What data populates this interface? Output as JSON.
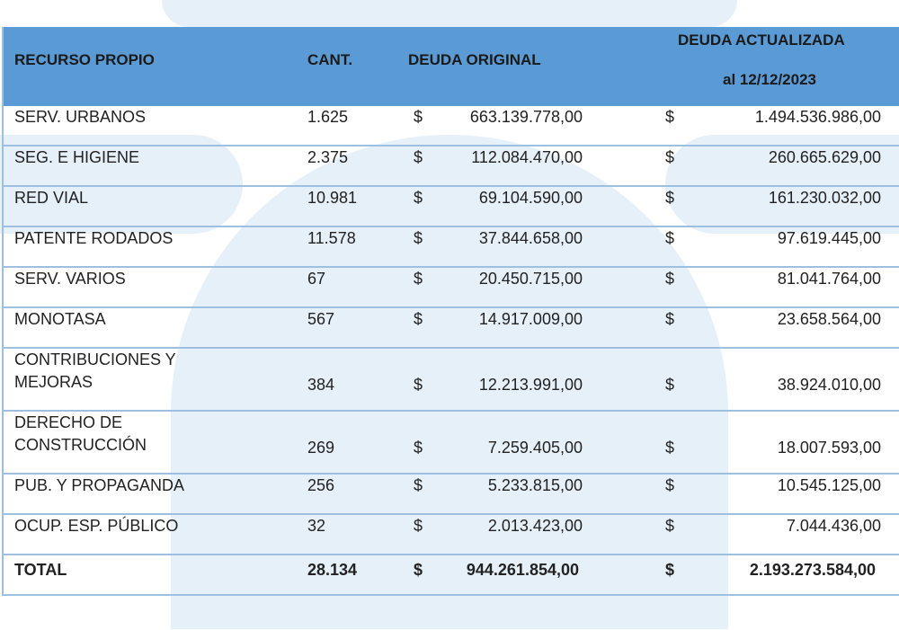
{
  "header": {
    "recurso": "RECURSO PROPIO",
    "cant": "CANT.",
    "deuda_original": "DEUDA ORIGINAL",
    "deuda_actualizada": "DEUDA ACTUALIZADA",
    "fecha": "al 12/12/2023"
  },
  "currency": "$",
  "rows": [
    {
      "name": [
        "SERV. URBANOS"
      ],
      "cant": "1.625",
      "original": "663.139.778,00",
      "actualizada": "1.494.536.986,00"
    },
    {
      "name": [
        "SEG. E HIGIENE"
      ],
      "cant": "2.375",
      "original": "112.084.470,00",
      "actualizada": "260.665.629,00"
    },
    {
      "name": [
        "RED VIAL"
      ],
      "cant": "10.981",
      "original": "69.104.590,00",
      "actualizada": "161.230.032,00"
    },
    {
      "name": [
        "PATENTE RODADOS"
      ],
      "cant": "11.578",
      "original": "37.844.658,00",
      "actualizada": "97.619.445,00"
    },
    {
      "name": [
        "SERV. VARIOS"
      ],
      "cant": "67",
      "original": "20.450.715,00",
      "actualizada": "81.041.764,00"
    },
    {
      "name": [
        "MONOTASA"
      ],
      "cant": "567",
      "original": "14.917.009,00",
      "actualizada": "23.658.564,00"
    },
    {
      "name": [
        "CONTRIBUCIONES Y",
        "MEJORAS"
      ],
      "cant": "384",
      "original": "12.213.991,00",
      "actualizada": "38.924.010,00"
    },
    {
      "name": [
        "DERECHO DE",
        "CONSTRUCCIÓN"
      ],
      "cant": "269",
      "original": "7.259.405,00",
      "actualizada": "18.007.593,00"
    },
    {
      "name": [
        "PUB. Y PROPAGANDA"
      ],
      "cant": "256",
      "original": "5.233.815,00",
      "actualizada": "10.545.125,00"
    },
    {
      "name": [
        "OCUP. ESP. PÚBLICO"
      ],
      "cant": "32",
      "original": "2.013.423,00",
      "actualizada": "7.044.436,00"
    }
  ],
  "total": {
    "name": "TOTAL",
    "cant": "28.134",
    "original": "944.261.854,00",
    "actualizada": "2.193.273.584,00"
  },
  "colors": {
    "header": "#5b9bd5",
    "rule": "#9dbfe0",
    "watermark": "#e6f0f9"
  }
}
